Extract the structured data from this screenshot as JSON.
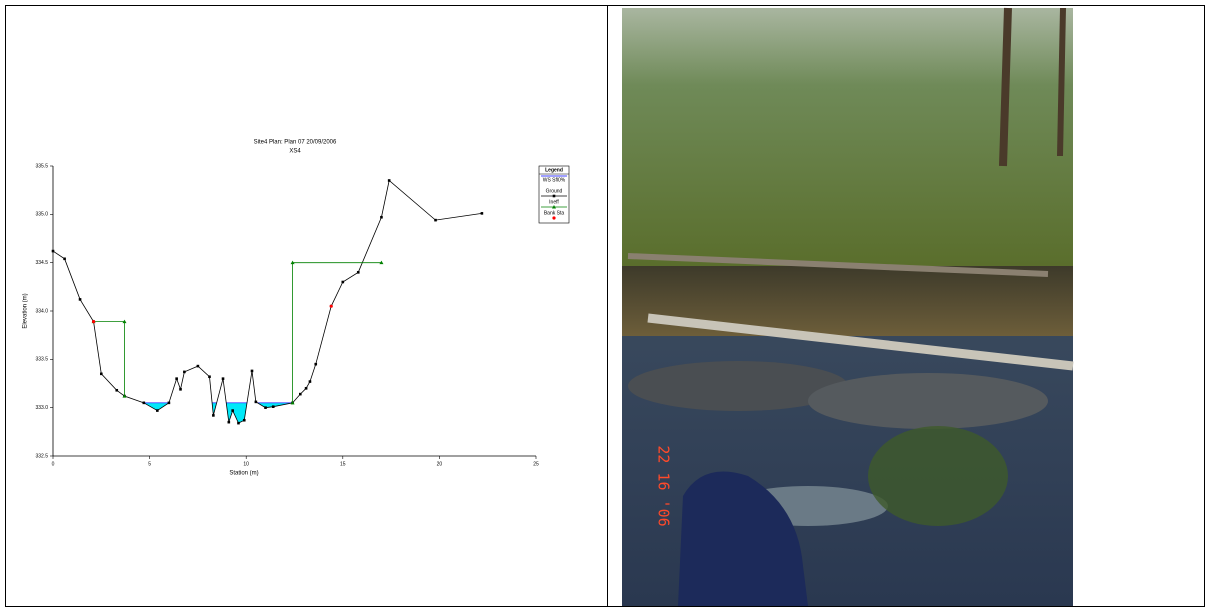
{
  "chart_data": {
    "type": "line",
    "title": "Site4      Plan: Plan 07     20/09/2006",
    "subtitle": "XS4",
    "x_label": "Station (m)",
    "y_label": "Elevation (m)",
    "legend_title": "Legend",
    "xlim": [
      0,
      25
    ],
    "xticks": [
      0,
      5,
      10,
      15,
      20,
      25
    ],
    "ylim": [
      332.5,
      335.5
    ],
    "yticks": [
      332.5,
      {
        "value": 333,
        "label": "333.0"
      },
      333.5,
      {
        "value": 334,
        "label": "334.0"
      },
      334.5,
      {
        "value": 335,
        "label": "335.0"
      },
      335.5
    ],
    "series": [
      {
        "name": "WS Sfl0%",
        "color": "#4040ff",
        "fill": "#00e8f8",
        "values": [
          333.05
        ]
      },
      {
        "name": "Ground",
        "color": "#000000",
        "x": [
          0,
          0.6,
          1.4,
          2.1,
          2.5,
          3.3,
          3.7,
          4.7,
          5.4,
          6.0,
          6.4,
          6.6,
          6.8,
          7.5,
          8.1,
          8.3,
          8.8,
          9.1,
          9.3,
          9.6,
          9.9,
          10.3,
          10.5,
          11.0,
          11.4,
          12.4,
          12.8,
          13.1,
          13.3,
          13.6,
          14.4,
          15.0,
          15.8,
          17.0,
          17.4,
          19.8,
          22.2
        ],
        "values": [
          334.62,
          334.54,
          334.12,
          333.89,
          333.35,
          333.18,
          333.12,
          333.05,
          332.97,
          333.05,
          333.3,
          333.19,
          333.37,
          333.43,
          333.32,
          332.92,
          333.3,
          332.85,
          332.97,
          332.84,
          332.87,
          333.38,
          333.06,
          333.0,
          333.01,
          333.05,
          333.14,
          333.2,
          333.27,
          333.45,
          334.05,
          334.3,
          334.4,
          334.97,
          335.35,
          334.94,
          335.01
        ]
      },
      {
        "name": "Ineff",
        "color": "#008000",
        "x": [
          2.1,
          3.7,
          3.7,
          null,
          12.4,
          12.4,
          17.0
        ],
        "values": [
          333.89,
          333.89,
          333.12,
          null,
          333.05,
          334.5,
          334.5
        ]
      },
      {
        "name": "Bank Sta",
        "color": "#ff0000",
        "x": [
          2.1,
          14.4
        ],
        "values": [
          333.89,
          334.05
        ]
      }
    ]
  },
  "photo": {
    "date_stamp": "22 16 '06"
  }
}
